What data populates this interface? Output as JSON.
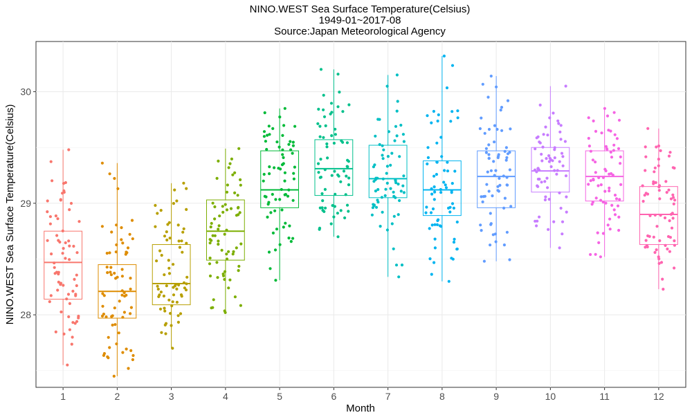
{
  "chart_data": {
    "type": "box",
    "title_lines": [
      "NINO.WEST Sea Surface Temperature(Celsius)",
      "1949-01~2017-08",
      "Source:Japan Meteorological Agency"
    ],
    "xlabel": "Month",
    "ylabel": "NINO.WEST Sea Surface Temperature(Celsius)",
    "categories": [
      "1",
      "2",
      "3",
      "4",
      "5",
      "6",
      "7",
      "8",
      "9",
      "10",
      "11",
      "12"
    ],
    "ylim": [
      27.35,
      30.45
    ],
    "yticks": [
      28,
      29,
      30
    ],
    "grid": true,
    "jitter_points_shown": true,
    "colors": [
      "#F8766D",
      "#DE8C00",
      "#B79F00",
      "#7CAE00",
      "#00BA38",
      "#00C08B",
      "#00BFC4",
      "#00B4F0",
      "#619CFF",
      "#C77CFF",
      "#F564E3",
      "#FF64B0"
    ],
    "series": [
      {
        "category": "1",
        "q1": 28.14,
        "median": 28.47,
        "q3": 28.75,
        "min": 27.55,
        "max": 29.48
      },
      {
        "category": "2",
        "q1": 27.97,
        "median": 28.21,
        "q3": 28.45,
        "min": 27.45,
        "max": 29.36
      },
      {
        "category": "3",
        "q1": 28.09,
        "median": 28.28,
        "q3": 28.63,
        "min": 27.7,
        "max": 29.18
      },
      {
        "category": "4",
        "q1": 28.49,
        "median": 28.75,
        "q3": 29.03,
        "min": 28.02,
        "max": 29.49
      },
      {
        "category": "5",
        "q1": 28.96,
        "median": 29.12,
        "q3": 29.47,
        "min": 28.31,
        "max": 29.85
      },
      {
        "category": "6",
        "q1": 29.07,
        "median": 29.31,
        "q3": 29.57,
        "min": 28.7,
        "max": 30.2
      },
      {
        "category": "7",
        "q1": 29.05,
        "median": 29.22,
        "q3": 29.52,
        "min": 28.34,
        "max": 30.15
      },
      {
        "category": "8",
        "q1": 28.89,
        "median": 29.12,
        "q3": 29.38,
        "min": 28.3,
        "max": 30.32
      },
      {
        "category": "9",
        "q1": 28.96,
        "median": 29.24,
        "q3": 29.47,
        "min": 28.48,
        "max": 30.14
      },
      {
        "category": "10",
        "q1": 29.1,
        "median": 29.29,
        "q3": 29.5,
        "min": 28.6,
        "max": 30.05
      },
      {
        "category": "11",
        "q1": 29.02,
        "median": 29.24,
        "q3": 29.47,
        "min": 28.52,
        "max": 29.85
      },
      {
        "category": "12",
        "q1": 28.63,
        "median": 28.9,
        "q3": 29.15,
        "min": 28.23,
        "max": 29.67
      }
    ]
  }
}
